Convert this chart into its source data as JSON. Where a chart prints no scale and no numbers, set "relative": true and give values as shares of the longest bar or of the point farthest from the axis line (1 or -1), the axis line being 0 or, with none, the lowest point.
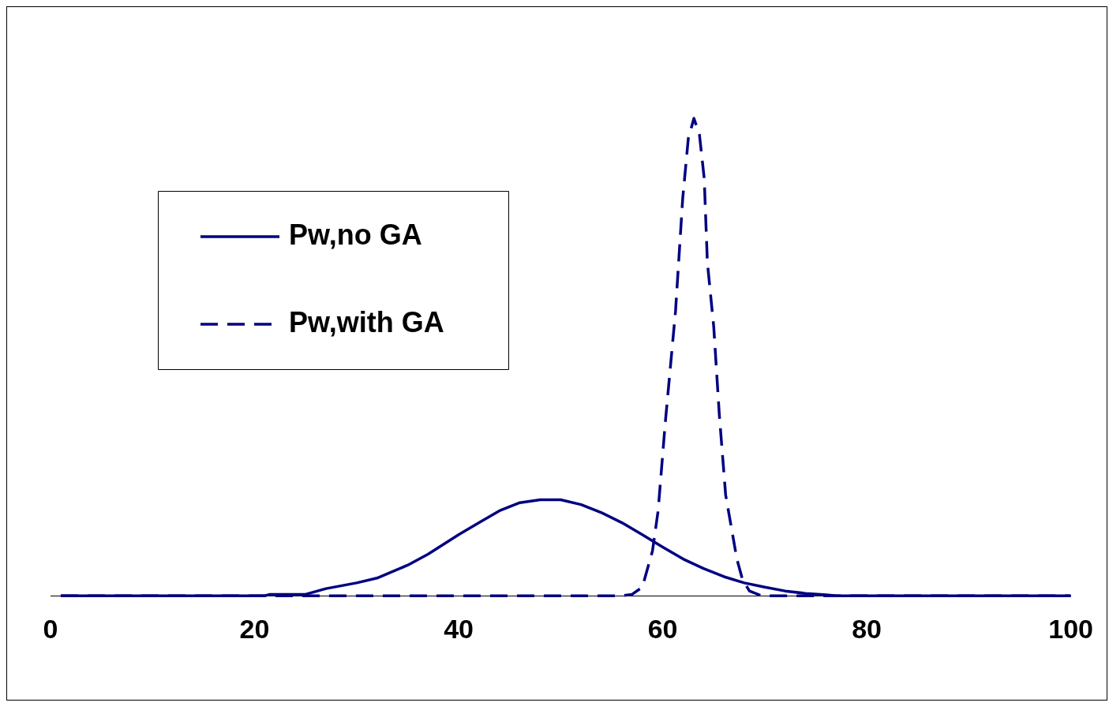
{
  "chart_data": {
    "type": "line",
    "relative": true,
    "xlim": [
      0,
      100
    ],
    "xticks": [
      0,
      20,
      40,
      60,
      80,
      100
    ],
    "grid": false,
    "legend": "top left",
    "marker": "none",
    "series": [
      {
        "name": "Pw,no GA",
        "color": "#000080",
        "line_style": "solid",
        "x": [
          1,
          21,
          21.5,
          25,
          27,
          30,
          32,
          35,
          37,
          40,
          42,
          44,
          46,
          48,
          50,
          52,
          54,
          56,
          58,
          60,
          62,
          64,
          66,
          68,
          70,
          72,
          74,
          76,
          77,
          100
        ],
        "values": [
          0,
          0,
          0.003,
          0.003,
          0.015,
          0.027,
          0.037,
          0.064,
          0.087,
          0.128,
          0.153,
          0.178,
          0.195,
          0.201,
          0.201,
          0.191,
          0.174,
          0.153,
          0.128,
          0.102,
          0.077,
          0.057,
          0.04,
          0.027,
          0.018,
          0.01,
          0.005,
          0.002,
          0,
          0
        ]
      },
      {
        "name": "Pw,with GA",
        "color": "#000080",
        "line_style": "dashed",
        "x": [
          1,
          56,
          57,
          58,
          59,
          59.55,
          60.25,
          61.26,
          61.96,
          62.51,
          63.06,
          63.6,
          64.07,
          64.38,
          65,
          65.55,
          66.17,
          66.72,
          67.27,
          67.82,
          68.5,
          69.7,
          100
        ],
        "values": [
          0,
          0,
          0.003,
          0.018,
          0.094,
          0.178,
          0.362,
          0.597,
          0.832,
          0.958,
          1,
          0.966,
          0.874,
          0.698,
          0.564,
          0.379,
          0.211,
          0.144,
          0.077,
          0.034,
          0.01,
          0,
          0
        ]
      }
    ]
  }
}
